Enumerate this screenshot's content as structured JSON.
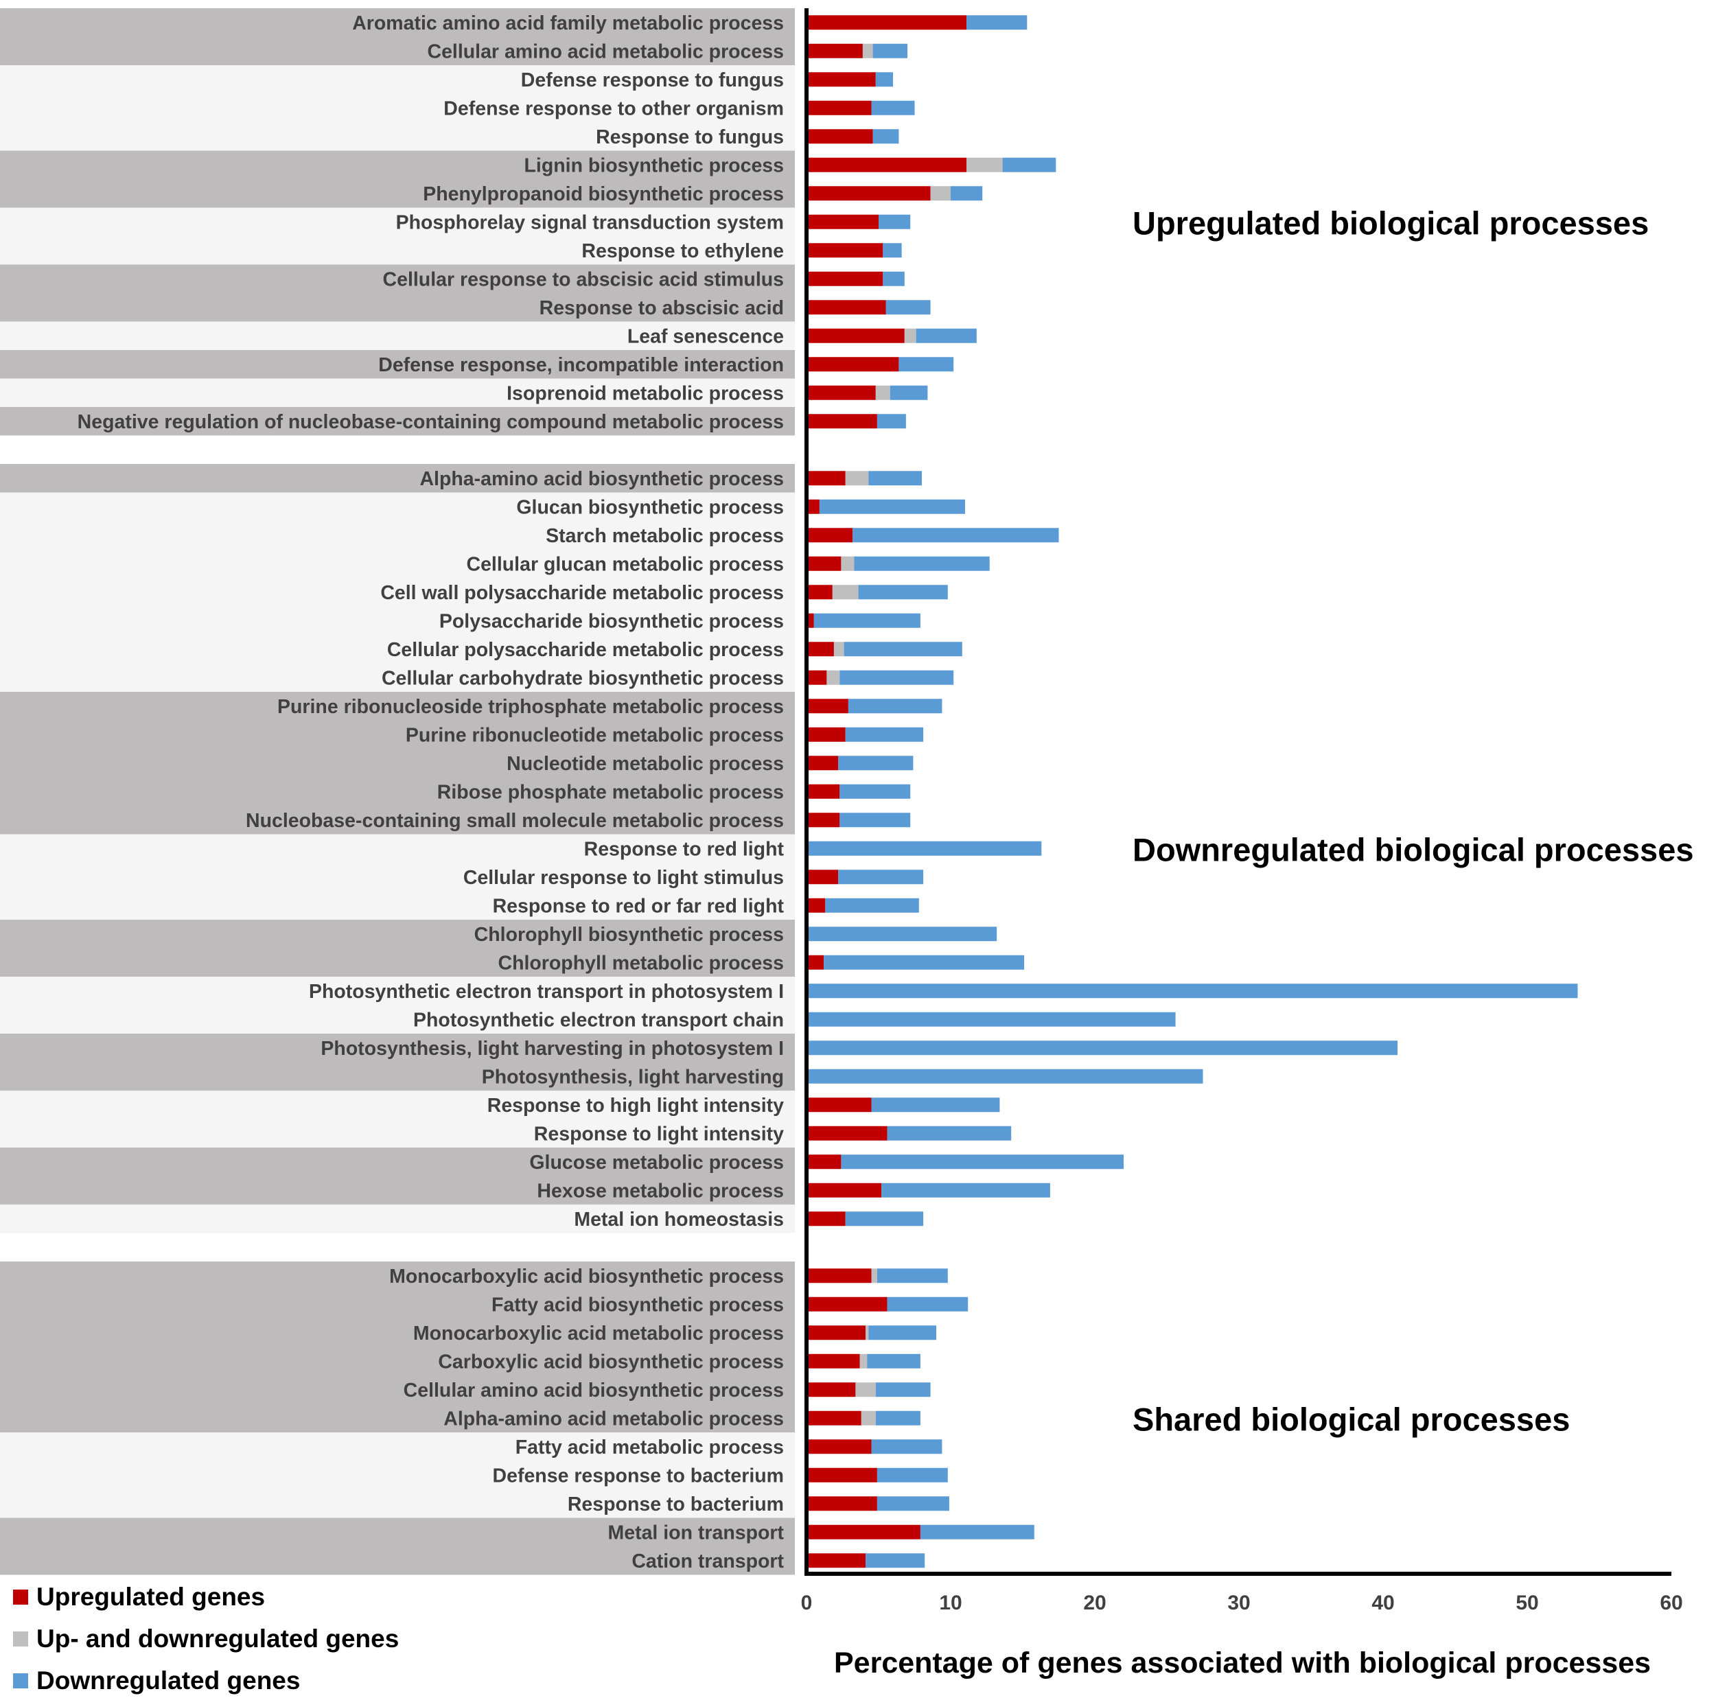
{
  "chart_data": {
    "type": "bar",
    "orientation": "horizontal",
    "stacked": true,
    "xlabel": "Percentage of genes associated with biological processes",
    "xlim": [
      0,
      60
    ],
    "xticks": [
      0,
      10,
      20,
      30,
      40,
      50,
      60
    ],
    "colors": {
      "up": "#c00000",
      "both": "#bfbfbf",
      "down": "#5b9bd5",
      "band_dark": "#bdbbbc",
      "band_light": "#f5f5f5",
      "text": "#404040"
    },
    "legend": [
      {
        "key": "up",
        "label": "Upregulated genes"
      },
      {
        "key": "both",
        "label": "Up- and downregulated genes"
      },
      {
        "key": "down",
        "label": "Downregulated genes"
      }
    ],
    "groups": [
      {
        "title": "Upregulated biological processes",
        "items": [
          {
            "label": "Aromatic amino acid family metabolic process",
            "up": 11.1,
            "both": 0,
            "down": 4.2,
            "band": "dark"
          },
          {
            "label": "Cellular amino acid metabolic process",
            "up": 3.9,
            "both": 0.7,
            "down": 2.4,
            "band": "dark"
          },
          {
            "label": "Defense response to fungus",
            "up": 4.8,
            "both": 0,
            "down": 1.2,
            "band": "light"
          },
          {
            "label": "Defense response to other organism",
            "up": 4.5,
            "both": 0,
            "down": 3.0,
            "band": "light"
          },
          {
            "label": "Response to fungus",
            "up": 4.6,
            "both": 0,
            "down": 1.8,
            "band": "light"
          },
          {
            "label": "Lignin biosynthetic process",
            "up": 11.1,
            "both": 2.5,
            "down": 3.7,
            "band": "dark"
          },
          {
            "label": "Phenylpropanoid biosynthetic process",
            "up": 8.6,
            "both": 1.4,
            "down": 2.2,
            "band": "dark"
          },
          {
            "label": "Phosphorelay signal transduction system",
            "up": 5.0,
            "both": 0,
            "down": 2.2,
            "band": "light"
          },
          {
            "label": "Response to ethylene",
            "up": 5.3,
            "both": 0,
            "down": 1.3,
            "band": "light"
          },
          {
            "label": "Cellular response to abscisic acid stimulus",
            "up": 5.3,
            "both": 0,
            "down": 1.5,
            "band": "dark"
          },
          {
            "label": "Response to abscisic acid",
            "up": 5.5,
            "both": 0,
            "down": 3.1,
            "band": "dark"
          },
          {
            "label": "Leaf senescence",
            "up": 6.8,
            "both": 0.8,
            "down": 4.2,
            "band": "light"
          },
          {
            "label": "Defense response, incompatible interaction",
            "up": 6.4,
            "both": 0,
            "down": 3.8,
            "band": "dark"
          },
          {
            "label": "Isoprenoid metabolic process",
            "up": 4.8,
            "both": 1.0,
            "down": 2.6,
            "band": "light"
          },
          {
            "label": "Negative regulation of nucleobase-containing compound metabolic process",
            "up": 4.9,
            "both": 0,
            "down": 2.0,
            "band": "dark"
          }
        ]
      },
      {
        "title": "Downregulated biological processes",
        "items": [
          {
            "label": "Alpha-amino acid biosynthetic process",
            "up": 2.7,
            "both": 1.6,
            "down": 3.7,
            "band": "dark"
          },
          {
            "label": "Glucan biosynthetic process",
            "up": 0.9,
            "both": 0,
            "down": 10.1,
            "band": "light"
          },
          {
            "label": "Starch metabolic process",
            "up": 3.2,
            "both": 0,
            "down": 14.3,
            "band": "light"
          },
          {
            "label": "Cellular glucan metabolic process",
            "up": 2.4,
            "both": 0.9,
            "down": 9.4,
            "band": "light"
          },
          {
            "label": "Cell wall polysaccharide metabolic process",
            "up": 1.8,
            "both": 1.8,
            "down": 6.2,
            "band": "light"
          },
          {
            "label": "Polysaccharide biosynthetic process",
            "up": 0.5,
            "both": 0,
            "down": 7.4,
            "band": "light"
          },
          {
            "label": "Cellular polysaccharide metabolic process",
            "up": 1.9,
            "both": 0.7,
            "down": 8.2,
            "band": "light"
          },
          {
            "label": "Cellular carbohydrate biosynthetic process",
            "up": 1.4,
            "both": 0.9,
            "down": 7.9,
            "band": "light"
          },
          {
            "label": "Purine ribonucleoside triphosphate metabolic process",
            "up": 2.9,
            "both": 0,
            "down": 6.5,
            "band": "dark"
          },
          {
            "label": "Purine ribonucleotide metabolic process",
            "up": 2.7,
            "both": 0,
            "down": 5.4,
            "band": "dark"
          },
          {
            "label": "Nucleotide metabolic process",
            "up": 2.2,
            "both": 0,
            "down": 5.2,
            "band": "dark"
          },
          {
            "label": "Ribose phosphate metabolic process",
            "up": 2.3,
            "both": 0,
            "down": 4.9,
            "band": "dark"
          },
          {
            "label": "Nucleobase-containing small molecule metabolic process",
            "up": 2.3,
            "both": 0,
            "down": 4.9,
            "band": "dark"
          },
          {
            "label": "Response to red light",
            "up": 0,
            "both": 0,
            "down": 16.3,
            "band": "light"
          },
          {
            "label": "Cellular response to light stimulus",
            "up": 2.2,
            "both": 0,
            "down": 5.9,
            "band": "light"
          },
          {
            "label": "Response to red or far red light",
            "up": 1.3,
            "both": 0,
            "down": 6.5,
            "band": "light"
          },
          {
            "label": "Chlorophyll biosynthetic process",
            "up": 0,
            "both": 0,
            "down": 13.2,
            "band": "dark"
          },
          {
            "label": "Chlorophyll metabolic process",
            "up": 1.2,
            "both": 0,
            "down": 13.9,
            "band": "dark"
          },
          {
            "label": "Photosynthetic electron transport in photosystem I",
            "up": 0,
            "both": 0,
            "down": 53.5,
            "band": "light"
          },
          {
            "label": "Photosynthetic electron transport chain",
            "up": 0,
            "both": 0,
            "down": 25.6,
            "band": "light"
          },
          {
            "label": "Photosynthesis, light harvesting in photosystem I",
            "up": 0,
            "both": 0,
            "down": 41.0,
            "band": "dark"
          },
          {
            "label": "Photosynthesis, light harvesting",
            "up": 0,
            "both": 0,
            "down": 27.5,
            "band": "dark"
          },
          {
            "label": "Response to high light intensity",
            "up": 4.5,
            "both": 0,
            "down": 8.9,
            "band": "light"
          },
          {
            "label": "Response to light intensity",
            "up": 5.6,
            "both": 0,
            "down": 8.6,
            "band": "light"
          },
          {
            "label": "Glucose metabolic process",
            "up": 2.4,
            "both": 0,
            "down": 19.6,
            "band": "dark"
          },
          {
            "label": "Hexose metabolic process",
            "up": 5.2,
            "both": 0,
            "down": 11.7,
            "band": "dark"
          },
          {
            "label": "Metal ion homeostasis",
            "up": 2.7,
            "both": 0,
            "down": 5.4,
            "band": "light"
          }
        ]
      },
      {
        "title": "Shared biological processes",
        "items": [
          {
            "label": "Monocarboxylic acid biosynthetic process",
            "up": 4.5,
            "both": 0.4,
            "down": 4.9,
            "band": "dark"
          },
          {
            "label": "Fatty acid biosynthetic process",
            "up": 5.6,
            "both": 0,
            "down": 5.6,
            "band": "dark"
          },
          {
            "label": "Monocarboxylic acid metabolic process",
            "up": 4.1,
            "both": 0.2,
            "down": 4.7,
            "band": "dark"
          },
          {
            "label": "Carboxylic acid biosynthetic process",
            "up": 3.7,
            "both": 0.5,
            "down": 3.7,
            "band": "dark"
          },
          {
            "label": "Cellular amino acid biosynthetic process",
            "up": 3.4,
            "both": 1.4,
            "down": 3.8,
            "band": "dark"
          },
          {
            "label": "Alpha-amino acid metabolic process",
            "up": 3.8,
            "both": 1.0,
            "down": 3.1,
            "band": "dark"
          },
          {
            "label": "Fatty acid metabolic process",
            "up": 4.5,
            "both": 0,
            "down": 4.9,
            "band": "light"
          },
          {
            "label": "Defense response to bacterium",
            "up": 4.9,
            "both": 0,
            "down": 4.9,
            "band": "light"
          },
          {
            "label": "Response to bacterium",
            "up": 4.9,
            "both": 0,
            "down": 5.0,
            "band": "light"
          },
          {
            "label": "Metal ion transport",
            "up": 7.9,
            "both": 0,
            "down": 7.9,
            "band": "dark"
          },
          {
            "label": "Cation transport",
            "up": 4.1,
            "both": 0,
            "down": 4.1,
            "band": "dark"
          }
        ]
      }
    ]
  }
}
